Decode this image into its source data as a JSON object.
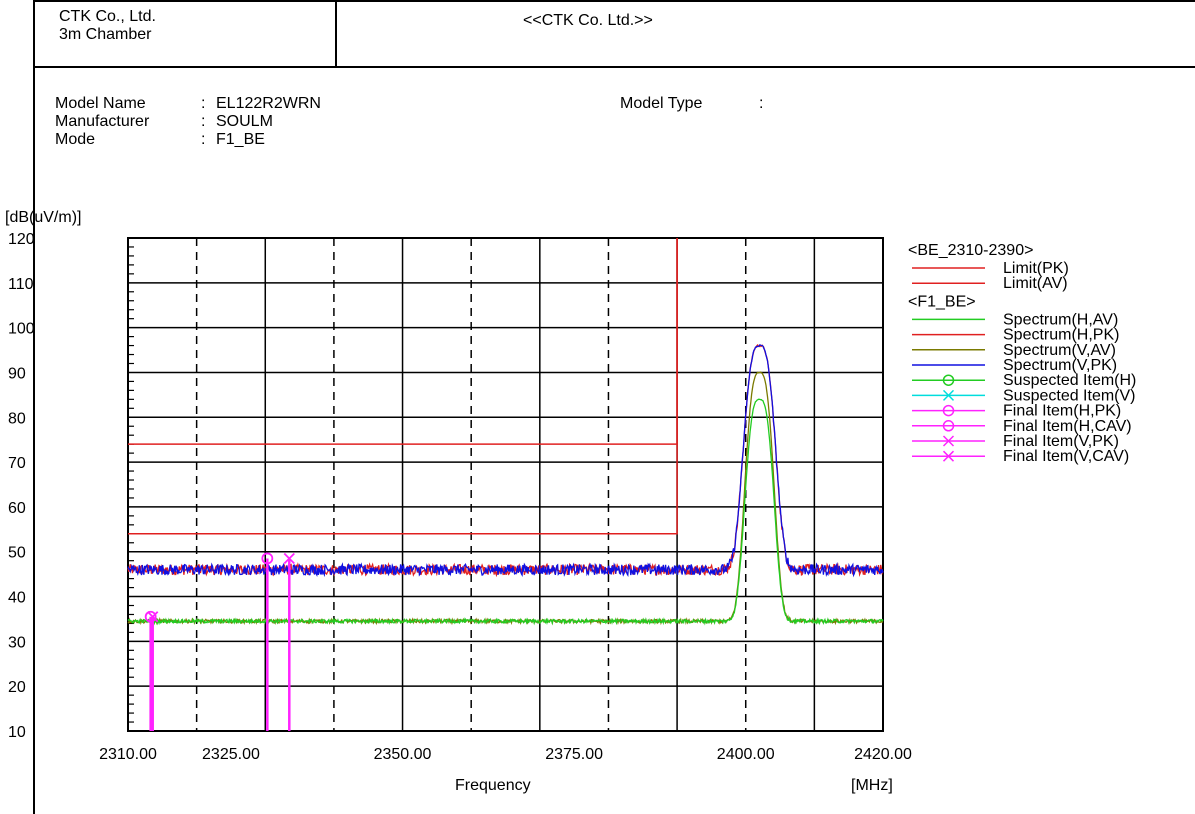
{
  "header": {
    "company_line1": "CTK Co., Ltd.",
    "company_line2": "3m Chamber",
    "center_title": "<<CTK Co. Ltd.>>"
  },
  "info": {
    "model_name_label": "Model Name",
    "model_name_value": "EL122R2WRN",
    "manufacturer_label": "Manufacturer",
    "manufacturer_value": "SOULM",
    "mode_label": "Mode",
    "mode_value": "F1_BE",
    "model_type_label": "Model Type",
    "model_type_value": "",
    "separator": ":"
  },
  "chart_data": {
    "type": "line",
    "ylabel": "[dB(uV/m)]",
    "xlabel": "Frequency",
    "xunit": "[MHz]",
    "xlim": [
      2310,
      2420
    ],
    "ylim": [
      10,
      120
    ],
    "x_tick_labels": [
      "2310.00",
      "2325.00",
      "2350.00",
      "2375.00",
      "2400.00",
      "2420.00"
    ],
    "y_tick_labels": [
      "120",
      "110",
      "100",
      "90",
      "80",
      "70",
      "60",
      "50",
      "40",
      "30",
      "20",
      "10"
    ],
    "grid": true,
    "legend_position": "right",
    "legend_groups": [
      {
        "title": "<BE_2310-2390>",
        "items": [
          {
            "name": "Limit(PK)",
            "color": "#e02020",
            "marker": "none"
          },
          {
            "name": "Limit(AV)",
            "color": "#e02020",
            "marker": "none"
          }
        ]
      },
      {
        "title": "<F1_BE>",
        "items": [
          {
            "name": "Spectrum(H,AV)",
            "color": "#22cc22",
            "marker": "none"
          },
          {
            "name": "Spectrum(H,PK)",
            "color": "#e02020",
            "marker": "none"
          },
          {
            "name": "Spectrum(V,AV)",
            "color": "#7a7a00",
            "marker": "none"
          },
          {
            "name": "Spectrum(V,PK)",
            "color": "#1010e0",
            "marker": "none"
          },
          {
            "name": "Suspected Item(H)",
            "color": "#22cc22",
            "marker": "circle"
          },
          {
            "name": "Suspected Item(V)",
            "color": "#00dddd",
            "marker": "x"
          },
          {
            "name": "Final Item(H,PK)",
            "color": "#ff22ff",
            "marker": "circle"
          },
          {
            "name": "Final Item(H,CAV)",
            "color": "#ff22ff",
            "marker": "circle"
          },
          {
            "name": "Final Item(V,PK)",
            "color": "#ff22ff",
            "marker": "x"
          },
          {
            "name": "Final Item(V,CAV)",
            "color": "#ff22ff",
            "marker": "x"
          }
        ]
      }
    ],
    "limits": [
      {
        "name": "Limit(PK)",
        "x_end": 2390,
        "value": 74,
        "color": "#e02020"
      },
      {
        "name": "Limit(AV)",
        "x_end": 2390,
        "value": 54,
        "color": "#e02020"
      }
    ],
    "spectra": [
      {
        "name": "Spectrum(H,PK)",
        "color": "#e02020",
        "baseline": 46,
        "peak_freq": 2402,
        "peak_value": 96,
        "peak_width": 2.2,
        "noise": 1.2
      },
      {
        "name": "Spectrum(V,PK)",
        "color": "#1010e0",
        "baseline": 46,
        "peak_freq": 2402,
        "peak_value": 96,
        "peak_width": 2.2,
        "noise": 1.2
      },
      {
        "name": "Spectrum(V,AV)",
        "color": "#7a7a00",
        "baseline": 34.5,
        "peak_freq": 2402,
        "peak_value": 90,
        "peak_width": 2.0,
        "noise": 0.4
      },
      {
        "name": "Spectrum(H,AV)",
        "color": "#22cc22",
        "baseline": 34.5,
        "peak_freq": 2402,
        "peak_value": 84,
        "peak_width": 2.0,
        "noise": 0.4
      }
    ],
    "final_items": [
      {
        "name": "Final Item(H,PK)",
        "x": 2313.3,
        "y": 35.5,
        "marker": "circle"
      },
      {
        "name": "Final Item(V,PK)",
        "x": 2313.6,
        "y": 35.5,
        "marker": "x"
      },
      {
        "name": "Final Item(H,PK)",
        "x": 2330.3,
        "y": 48.5,
        "marker": "circle"
      },
      {
        "name": "Final Item(V,PK)",
        "x": 2333.5,
        "y": 48.5,
        "marker": "x"
      }
    ]
  }
}
